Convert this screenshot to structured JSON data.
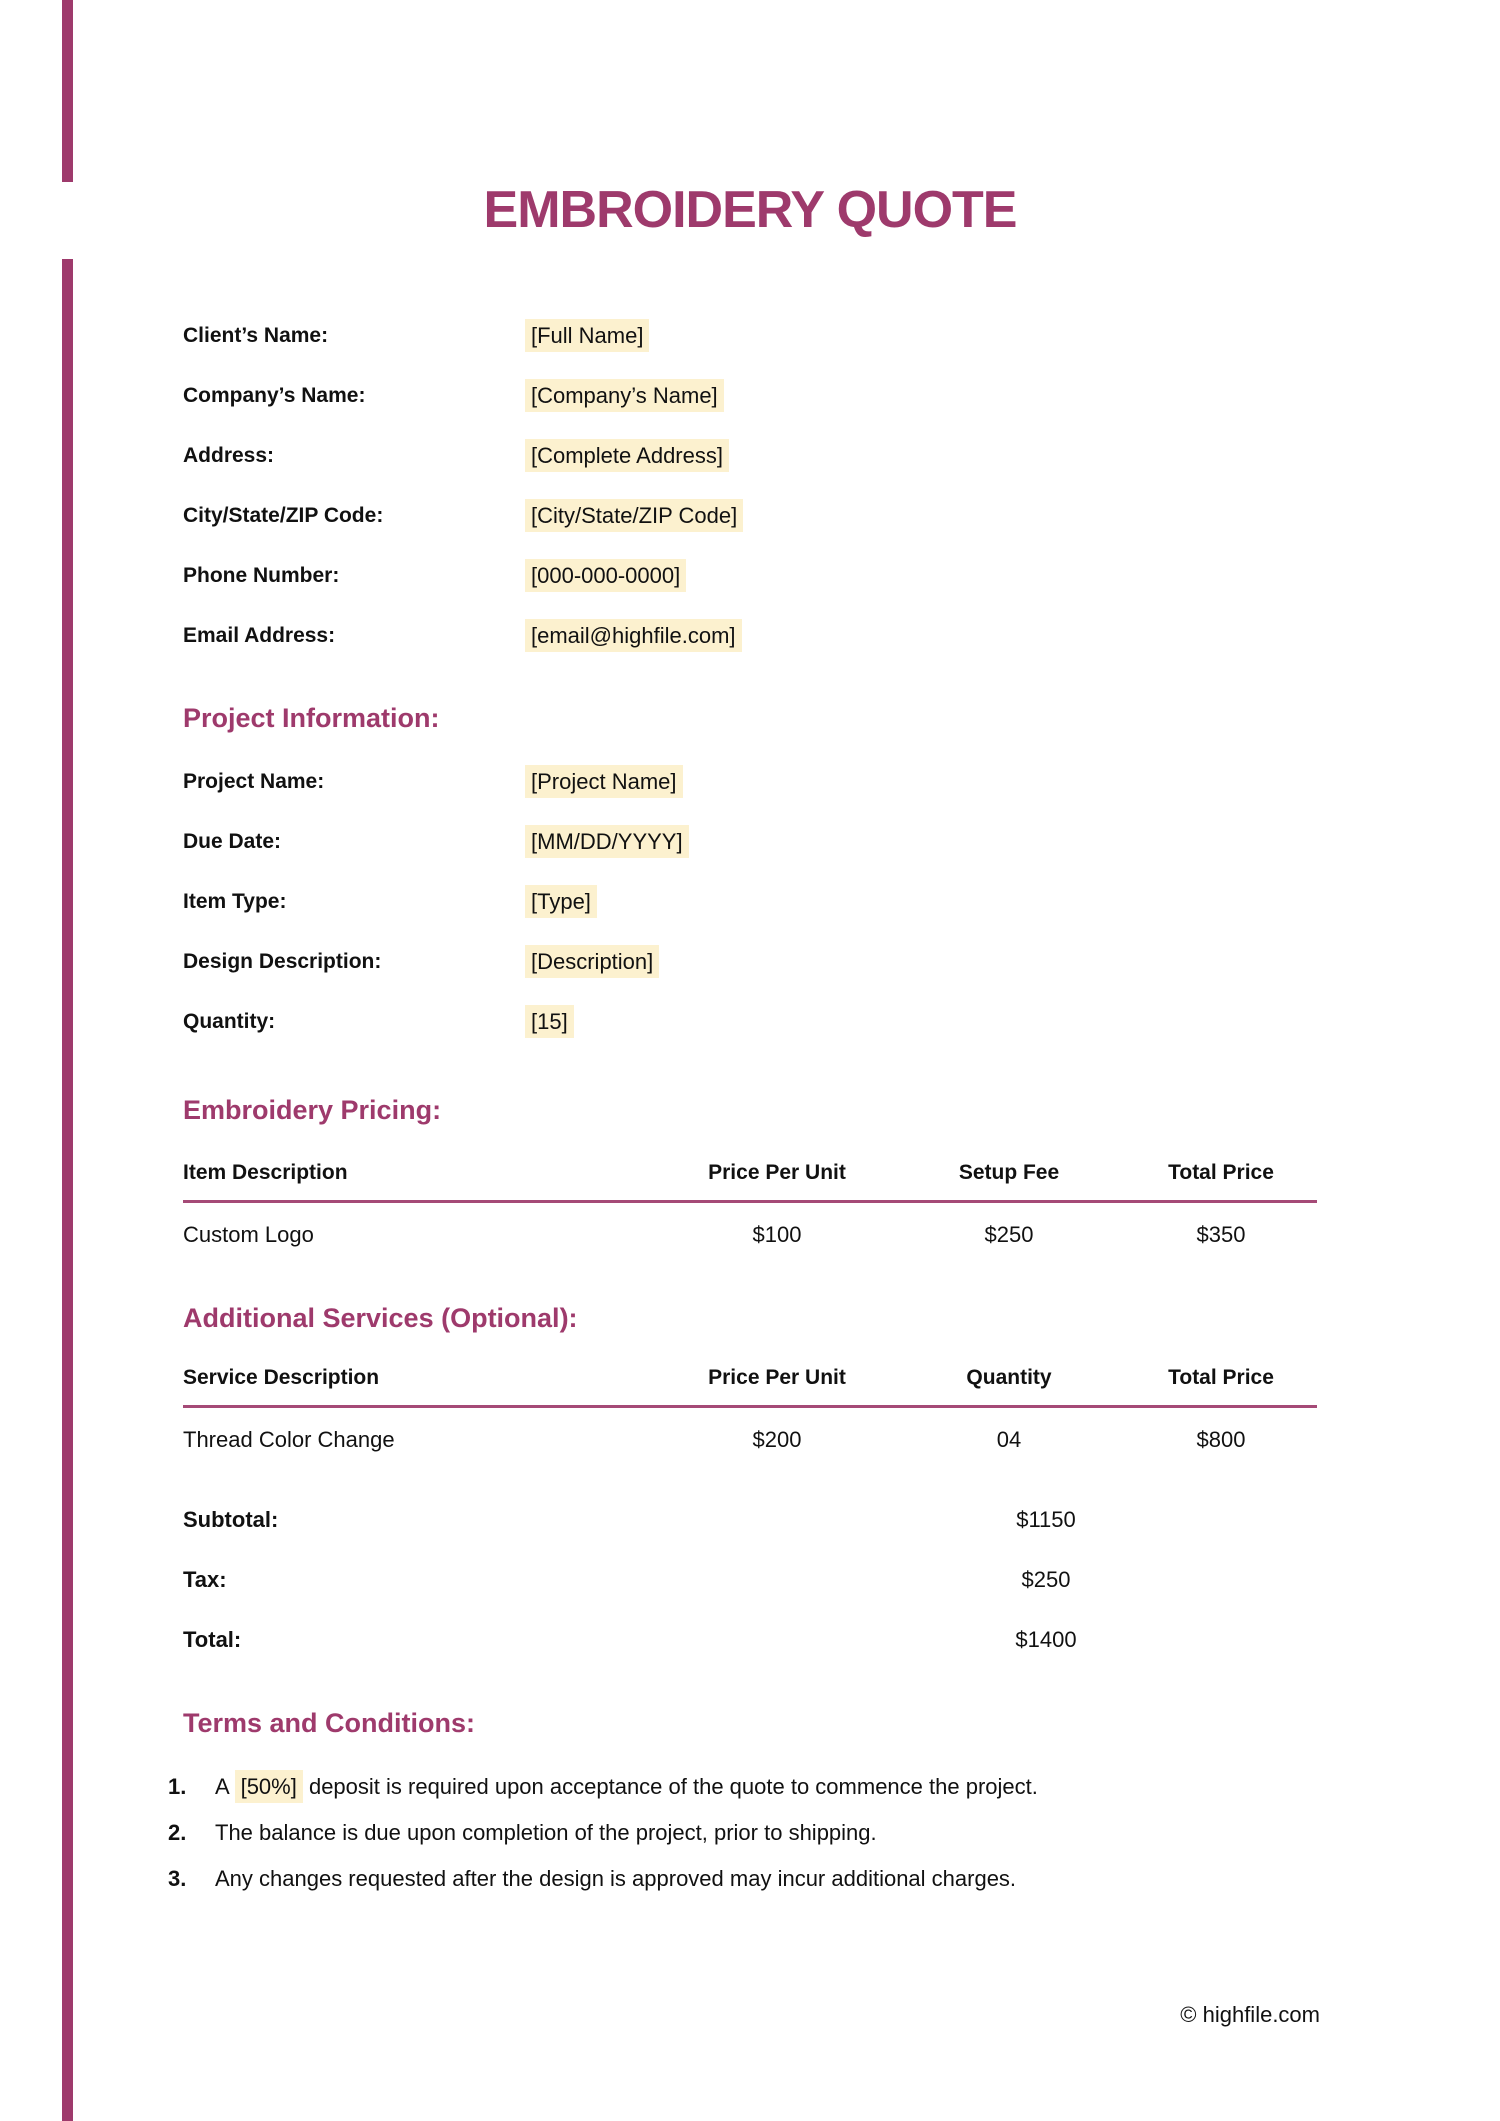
{
  "theme": {
    "accent": "#9e3a6c",
    "rule": "#a54a77",
    "highlight": "#fcf1cf",
    "text": "#111111"
  },
  "page": {
    "title": "EMBROIDERY QUOTE",
    "footer": "© highfile.com"
  },
  "client_fields": [
    {
      "label": "Client’s Name:",
      "value": "[Full Name]"
    },
    {
      "label": "Company’s Name:",
      "value": "[Company’s Name]"
    },
    {
      "label": "Address:",
      "value": "[Complete Address]"
    },
    {
      "label": "City/State/ZIP Code:",
      "value": "[City/State/ZIP Code]"
    },
    {
      "label": "Phone Number:",
      "value": "[000-000-0000]"
    },
    {
      "label": "Email Address:",
      "value": "[email@highfile.com]"
    }
  ],
  "project_section": {
    "heading": "Project Information:",
    "fields": [
      {
        "label": "Project Name:",
        "value": "[Project Name]"
      },
      {
        "label": "Due Date:",
        "value": "[MM/DD/YYYY]"
      },
      {
        "label": "Item Type:",
        "value": "[Type]"
      },
      {
        "label": "Design Description:",
        "value": "[Description]"
      },
      {
        "label": "Quantity:",
        "value": "[15]"
      }
    ]
  },
  "pricing_section": {
    "heading": "Embroidery Pricing:",
    "headers": [
      "Item Description",
      "Price Per Unit",
      "Setup Fee",
      "Total Price"
    ],
    "rows": [
      [
        "Custom Logo",
        "$100",
        "$250",
        "$350"
      ]
    ]
  },
  "services_section": {
    "heading": "Additional Services (Optional):",
    "headers": [
      "Service Description",
      "Price Per Unit",
      "Quantity",
      "Total Price"
    ],
    "rows": [
      [
        "Thread Color Change",
        "$200",
        "04",
        "$800"
      ]
    ]
  },
  "totals": [
    {
      "label": "Subtotal:",
      "value": "$1150"
    },
    {
      "label": "Tax:",
      "value": "$250"
    },
    {
      "label": "Total:",
      "value": "$1400"
    }
  ],
  "terms_section": {
    "heading": "Terms and Conditions:",
    "items": [
      {
        "number": "1.",
        "before": "A ",
        "highlight": "[50%]",
        "after": " deposit is required upon acceptance of the quote to commence the project."
      },
      {
        "number": "2.",
        "before": "The balance is due upon completion of the project, prior to shipping.",
        "highlight": "",
        "after": ""
      },
      {
        "number": "3.",
        "before": "Any changes requested after the design is approved may incur additional charges.",
        "highlight": "",
        "after": ""
      }
    ]
  }
}
